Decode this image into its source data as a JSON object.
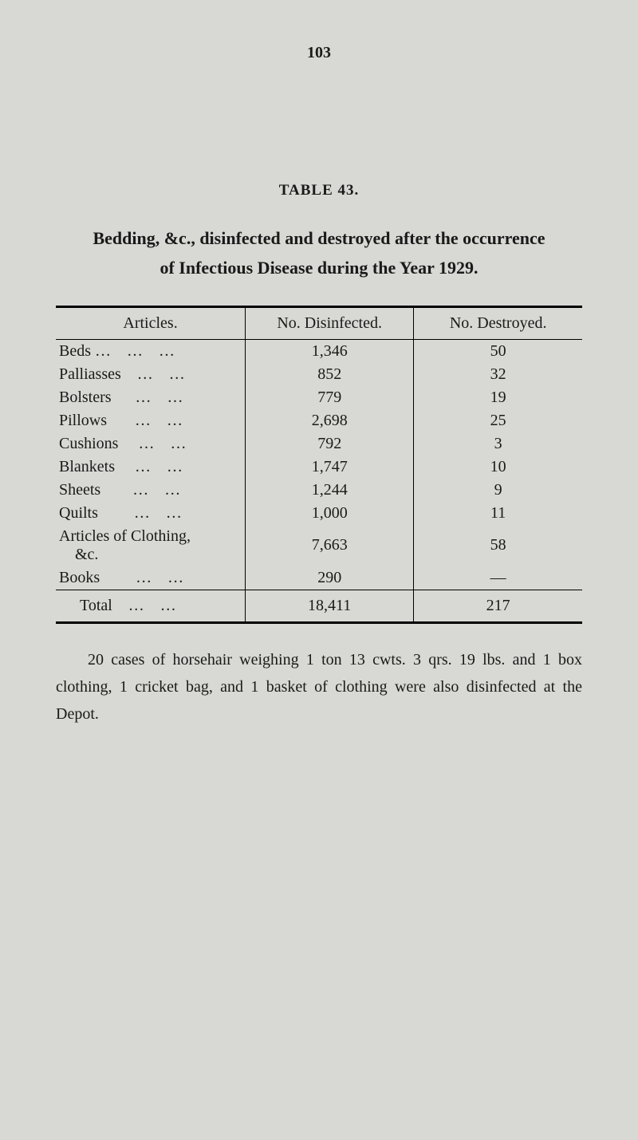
{
  "page_number": "103",
  "table_label": "TABLE 43.",
  "heading_line1": "Bedding, &c., disinfected and destroyed after the occurrence",
  "heading_line2": "of Infectious Disease during the Year 1929.",
  "table": {
    "type": "table",
    "columns": [
      "Articles.",
      "No. Disinfected.",
      "No. Destroyed."
    ],
    "rows": [
      {
        "article": "Beds …    …    …",
        "disinfected": "1,346",
        "destroyed": "50"
      },
      {
        "article": "Palliasses    …    …",
        "disinfected": "852",
        "destroyed": "32"
      },
      {
        "article": "Bolsters      …    …",
        "disinfected": "779",
        "destroyed": "19"
      },
      {
        "article": "Pillows       …    …",
        "disinfected": "2,698",
        "destroyed": "25"
      },
      {
        "article": "Cushions     …    …",
        "disinfected": "792",
        "destroyed": "3"
      },
      {
        "article": "Blankets     …    …",
        "disinfected": "1,747",
        "destroyed": "10"
      },
      {
        "article": "Sheets        …    …",
        "disinfected": "1,244",
        "destroyed": "9"
      },
      {
        "article": "Quilts         …    …",
        "disinfected": "1,000",
        "destroyed": "11"
      },
      {
        "article": "Articles of Clothing,\n    &c.",
        "disinfected": "7,663",
        "destroyed": "58"
      },
      {
        "article": "Books         …    …",
        "disinfected": "290",
        "destroyed": "—"
      }
    ],
    "total": {
      "article": "Total    …    …",
      "disinfected": "18,411",
      "destroyed": "217"
    }
  },
  "footnote": "20 cases of horsehair weighing 1 ton 13 cwts. 3 qrs. 19 lbs. and 1 box clothing, 1 cricket bag, and 1 basket of clothing were also disinfected at the Depot.",
  "colors": {
    "background": "#d8d8d4",
    "text": "#1a1a1a",
    "rule": "#000000"
  },
  "typography": {
    "body_fontsize_pt": 20,
    "heading_fontsize_pt": 22,
    "table_label_fontsize_pt": 19
  }
}
